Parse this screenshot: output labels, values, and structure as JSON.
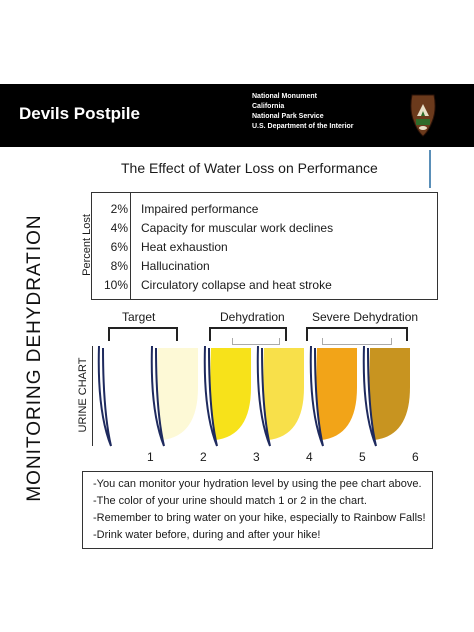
{
  "header": {
    "park_name": "Devils Postpile",
    "agency_lines": [
      "National Monument",
      "California",
      "National Park Service",
      "U.S. Department of the Interior"
    ]
  },
  "side_title": "MONITORING DEHYDRATION",
  "effects": {
    "title": "The Effect of Water Loss on Performance",
    "ylabel": "Percent Lost",
    "rows": [
      {
        "percent": "2%",
        "effect": "Impaired performance"
      },
      {
        "percent": "4%",
        "effect": "Capacity for muscular work declines"
      },
      {
        "percent": "6%",
        "effect": "Heat exhaustion"
      },
      {
        "percent": "8%",
        "effect": "Hallucination"
      },
      {
        "percent": "10%",
        "effect": "Circulatory collapse and heat stroke"
      }
    ]
  },
  "urine_chart": {
    "ylabel": "URINE CHART",
    "categories": [
      "Target",
      "Dehydration",
      "Severe Dehydration"
    ],
    "samples": [
      {
        "number": "1",
        "color": "#ffffff"
      },
      {
        "number": "2",
        "color": "#fdf9d6"
      },
      {
        "number": "3",
        "color": "#f7e21a"
      },
      {
        "number": "4",
        "color": "#f8e04a"
      },
      {
        "number": "5",
        "color": "#f2a418"
      },
      {
        "number": "6",
        "color": "#c89420"
      }
    ]
  },
  "notes": [
    "-You can monitor your hydration level by using the pee chart above.",
    "-The color of your urine should match 1 or 2 in the chart.",
    "-Remember to bring water on your hike, especially to Rainbow Falls!",
    "-Drink water before, during and after your hike!"
  ]
}
